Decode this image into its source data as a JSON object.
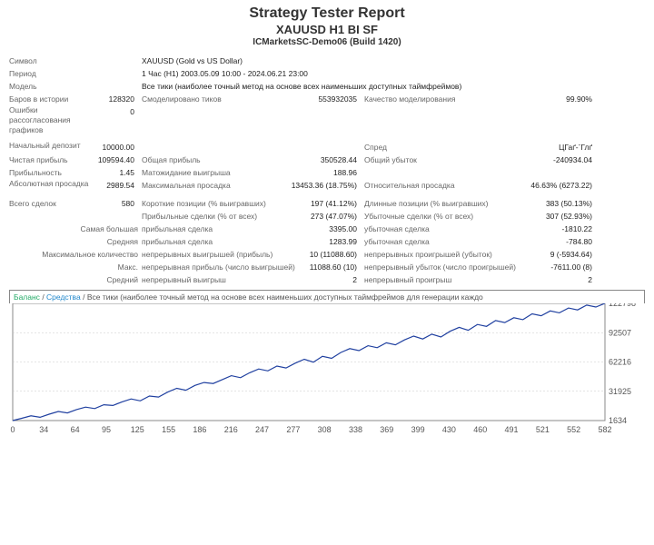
{
  "header": {
    "title": "Strategy Tester Report",
    "subtitle": "XAUUSD H1 BI SF",
    "server": "ICMarketsSC-Demo06 (Build 1420)"
  },
  "info": {
    "symbol_l": "Символ",
    "symbol_v": "XAUUSD (Gold vs US Dollar)",
    "period_l": "Период",
    "period_v": "1 Час (H1) 2003.05.09 10:00 - 2024.06.21 23:00",
    "model_l": "Модель",
    "model_v": "Все тики (наиболее точный метод на основе всех наименьших доступных таймфреймов)",
    "bars_l": "Баров в истории",
    "bars_v": "128320",
    "ticks_l": "Смоделировано тиков",
    "ticks_v": "553932035",
    "quality_l": "Качество моделирования",
    "quality_v": "99.90%",
    "mismatch_l": "Ошибки рассогласования графиков",
    "mismatch_v": "0",
    "deposit_l": "Начальный депозит",
    "deposit_v": "10000.00",
    "spread_l": "Спред",
    "spread_v": "ЦГаґ-ˉГлґ",
    "netprofit_l": "Чистая прибыль",
    "netprofit_v": "109594.40",
    "grossprofit_l": "Общая прибыль",
    "grossprofit_v": "350528.44",
    "grossloss_l": "Общий убыток",
    "grossloss_v": "-240934.04",
    "pf_l": "Прибыльность",
    "pf_v": "1.45",
    "ep_l": "Матожидание выигрыша",
    "ep_v": "188.96",
    "absdd_l": "Абсолютная просадка",
    "absdd_v": "2989.54",
    "maxdd_l": "Максимальная просадка",
    "maxdd_v": "13453.36 (18.75%)",
    "reldd_l": "Относительная просадка",
    "reldd_v": "46.63% (6273.22)",
    "total_l": "Всего сделок",
    "total_v": "580",
    "short_l": "Короткие позиции (% выигравших)",
    "short_v": "197 (41.12%)",
    "long_l": "Длинные позиции (% выигравших)",
    "long_v": "383 (50.13%)",
    "pt_l": "Прибыльные сделки (% от всех)",
    "pt_v": "273 (47.07%)",
    "lt_l": "Убыточные сделки (% от всех)",
    "lt_v": "307 (52.93%)",
    "largest_l": "Самая большая",
    "lp_l": "прибыльная сделка",
    "lp_v": "3395.00",
    "ll_l": "убыточная сделка",
    "ll_v": "-1810.22",
    "avg_l": "Средняя",
    "ap_l": "прибыльная сделка",
    "ap_v": "1283.99",
    "al_l": "убыточная сделка",
    "al_v": "-784.80",
    "maxcnt_l": "Максимальное количество",
    "cw_l": "непрерывных выигрышей (прибыль)",
    "cw_v": "10 (11088.60)",
    "cl_l": "непрерывных проигрышей (убыток)",
    "cl_v": "9 (-5934.64)",
    "max_l": "Макс.",
    "cp_l": "непрерывная прибыль (число выигрышей)",
    "cp_v": "11088.60 (10)",
    "closs_l": "непрерывный убыток (число проигрышей)",
    "closs_v": "-7611.00 (8)",
    "avg2_l": "Средний",
    "aw_l": "непрерывный выигрыш",
    "aw_v": "2",
    "alo_l": "непрерывный проигрыш",
    "alo_v": "2"
  },
  "chart": {
    "legend_balance": "Баланс",
    "legend_equity": "Средства",
    "legend_rest": "Все тики (наиболее точный метод на основе всех наименьших доступных таймфреймов для генерации каждо",
    "y_ticks": [
      "122798",
      "92507",
      "62216",
      "31925",
      "1634"
    ],
    "x_ticks": [
      "0",
      "34",
      "64",
      "95",
      "125",
      "155",
      "186",
      "216",
      "247",
      "277",
      "308",
      "338",
      "369",
      "399",
      "430",
      "460",
      "491",
      "521",
      "552",
      "582"
    ],
    "line_color": "#2040a0",
    "grid_color": "#c8c8c8",
    "border_color": "#888888",
    "ylim": [
      1634,
      122798
    ],
    "series": [
      1634,
      4000,
      6500,
      5000,
      8200,
      11000,
      9500,
      13000,
      15500,
      14000,
      18000,
      17200,
      21000,
      24000,
      22000,
      27000,
      26000,
      31000,
      35000,
      33000,
      38000,
      41000,
      40000,
      44000,
      48000,
      46000,
      51000,
      55000,
      53000,
      58000,
      56000,
      61000,
      65000,
      62000,
      68000,
      66000,
      72000,
      76000,
      74000,
      79000,
      77000,
      82000,
      80000,
      85000,
      89000,
      86000,
      91000,
      88000,
      94000,
      98000,
      95000,
      101000,
      99000,
      105000,
      103000,
      108000,
      106000,
      112000,
      110000,
      115000,
      113000,
      118000,
      116000,
      121000,
      119000,
      122798
    ]
  }
}
